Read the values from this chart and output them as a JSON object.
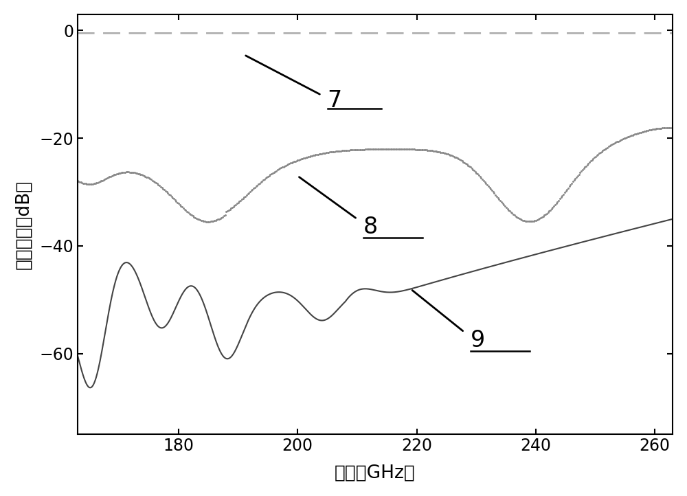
{
  "title": "",
  "xlabel": "频率（GHz）",
  "ylabel": "散射参数（dB）",
  "xlim": [
    163,
    263
  ],
  "ylim": [
    -75,
    3
  ],
  "xticks": [
    180,
    200,
    220,
    240,
    260
  ],
  "yticks": [
    0,
    -20,
    -40,
    -60
  ],
  "background_color": "#ffffff",
  "line7_color": "#aaaaaa",
  "line8_color": "#888888",
  "line9_color": "#444444"
}
